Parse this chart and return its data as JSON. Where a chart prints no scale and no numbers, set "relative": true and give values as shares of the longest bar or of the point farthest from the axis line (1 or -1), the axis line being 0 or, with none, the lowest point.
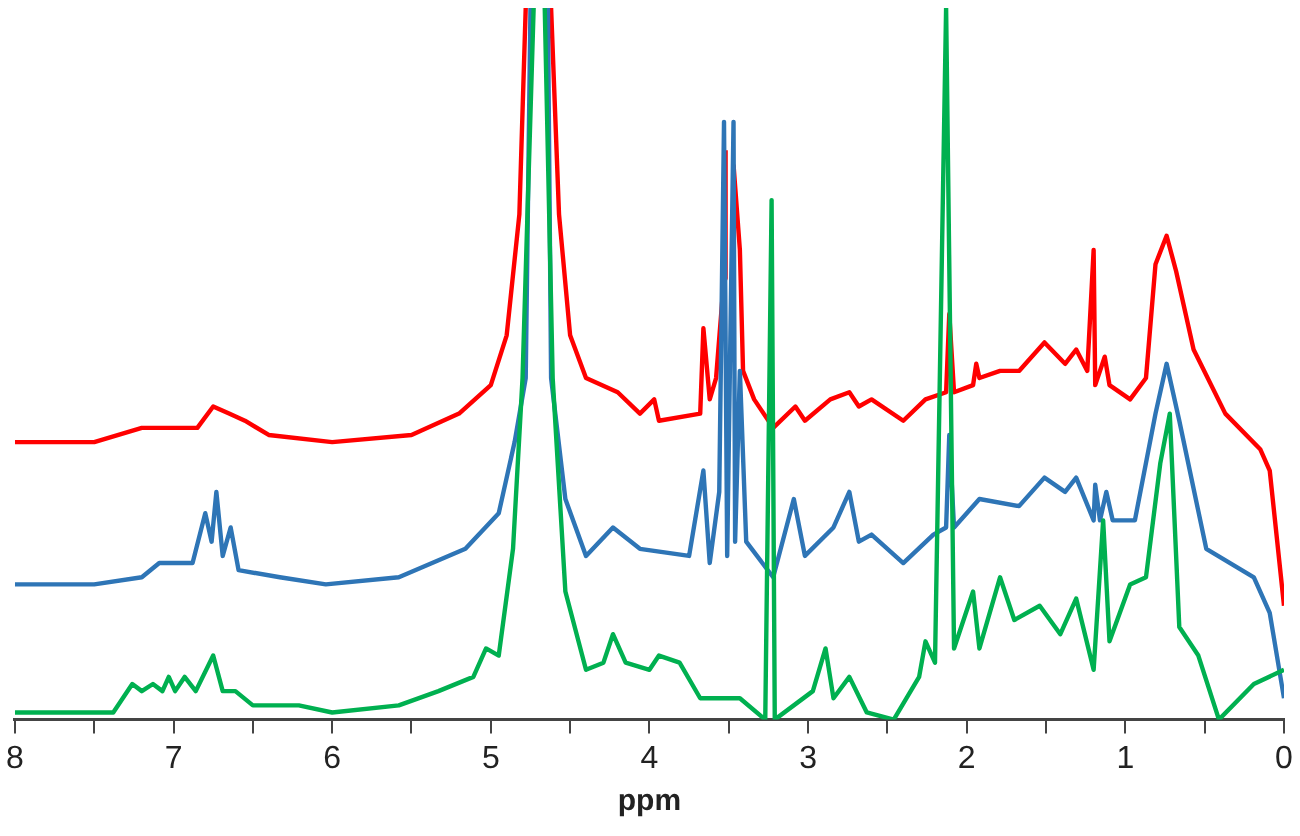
{
  "chart_data": {
    "type": "line",
    "xlabel": "ppm",
    "relative": true,
    "grid": false,
    "legend": false,
    "marker": "none",
    "line_style": "solid",
    "xlim": [
      8,
      0
    ],
    "xticks": [
      8,
      {
        "value": 7.5,
        "label": null
      },
      7,
      {
        "value": 6.5,
        "label": null
      },
      6,
      {
        "value": 5.5,
        "label": null
      },
      5,
      {
        "value": 4.5,
        "label": null
      },
      4,
      {
        "value": 3.5,
        "label": null
      },
      3,
      {
        "value": 2.5,
        "label": null
      },
      2,
      {
        "value": 1.5,
        "label": null
      },
      1,
      {
        "value": 0.5,
        "label": null
      },
      0
    ],
    "series": [
      {
        "color": "#ff0000",
        "x": [
          8,
          7.5,
          7.2,
          7.0,
          6.85,
          6.75,
          6.65,
          6.55,
          6.4,
          6.0,
          5.5,
          5.2,
          5.0,
          4.9,
          4.82,
          4.78,
          4.7,
          4.62,
          4.57,
          4.5,
          4.4,
          4.2,
          4.06,
          3.97,
          3.94,
          3.68,
          3.66,
          3.62,
          3.58,
          3.53,
          3.52,
          3.5,
          3.47,
          3.43,
          3.41,
          3.34,
          3.22,
          3.08,
          3.02,
          2.86,
          2.74,
          2.68,
          2.6,
          2.4,
          2.26,
          2.13,
          2.11,
          2.08,
          1.96,
          1.94,
          1.92,
          1.79,
          1.67,
          1.51,
          1.38,
          1.31,
          1.24,
          1.2,
          1.19,
          1.13,
          1.1,
          0.97,
          0.87,
          0.81,
          0.74,
          0.68,
          0.57,
          0.37,
          0.15,
          0.09,
          0
        ],
        "values": [
          0.39,
          0.39,
          0.41,
          0.41,
          0.41,
          0.44,
          0.43,
          0.42,
          0.4,
          0.39,
          0.4,
          0.43,
          0.47,
          0.54,
          0.71,
          1,
          null,
          1,
          0.71,
          0.54,
          0.48,
          0.46,
          0.43,
          0.45,
          0.42,
          0.43,
          0.55,
          0.45,
          0.48,
          0.62,
          0.8,
          null,
          0.78,
          0.66,
          0.49,
          0.45,
          0.41,
          0.44,
          0.42,
          0.45,
          0.46,
          0.44,
          0.45,
          0.42,
          0.45,
          0.46,
          0.57,
          0.46,
          0.47,
          0.5,
          0.48,
          0.49,
          0.49,
          0.53,
          0.5,
          0.52,
          0.49,
          0.66,
          0.47,
          0.51,
          0.47,
          0.45,
          0.48,
          0.64,
          0.68,
          0.63,
          0.52,
          0.43,
          0.38,
          0.35,
          0.16
        ]
      },
      {
        "color": "#2e75b6",
        "x": [
          8,
          7.5,
          7.2,
          7.09,
          6.88,
          6.8,
          6.76,
          6.73,
          6.69,
          6.64,
          6.59,
          6.33,
          6.04,
          5.58,
          5.16,
          4.95,
          4.85,
          4.78,
          4.75,
          4.7,
          4.64,
          4.62,
          4.53,
          4.4,
          4.23,
          4.06,
          3.75,
          3.66,
          3.62,
          3.56,
          3.53,
          3.51,
          3.47,
          3.46,
          3.43,
          3.39,
          3.22,
          3.09,
          3.02,
          2.84,
          2.74,
          2.68,
          2.6,
          2.4,
          2.21,
          2.13,
          2.11,
          2.08,
          1.92,
          1.67,
          1.51,
          1.38,
          1.31,
          1.2,
          1.19,
          1.16,
          1.12,
          1.08,
          0.94,
          0.81,
          0.74,
          0.66,
          0.49,
          0.19,
          0.09,
          0
        ],
        "values": [
          0.19,
          0.19,
          0.2,
          0.22,
          0.22,
          0.29,
          0.25,
          0.32,
          0.23,
          0.27,
          0.21,
          0.2,
          0.19,
          0.2,
          0.24,
          0.29,
          0.39,
          0.48,
          1,
          null,
          1,
          0.48,
          0.31,
          0.23,
          0.27,
          0.24,
          0.23,
          0.35,
          0.22,
          0.32,
          0.84,
          0.23,
          0.84,
          0.25,
          0.49,
          0.25,
          0.2,
          0.31,
          0.23,
          0.27,
          0.32,
          0.25,
          0.26,
          0.22,
          0.26,
          0.27,
          0.4,
          0.27,
          0.31,
          0.3,
          0.34,
          0.32,
          0.34,
          0.28,
          0.33,
          0.28,
          0.32,
          0.28,
          0.28,
          0.43,
          0.5,
          0.42,
          0.24,
          0.2,
          0.15,
          0.03
        ]
      },
      {
        "color": "#00b050",
        "x": [
          8,
          7.85,
          7.38,
          7.26,
          7.2,
          7.13,
          7.07,
          7.03,
          6.99,
          6.93,
          6.86,
          6.75,
          6.69,
          6.61,
          6.5,
          6.21,
          6.0,
          5.58,
          5.33,
          5.11,
          5.03,
          4.95,
          4.86,
          4.8,
          4.73,
          4.7,
          4.66,
          4.61,
          4.53,
          4.4,
          4.29,
          4.23,
          4.15,
          4.0,
          3.94,
          3.81,
          3.68,
          3.43,
          3.27,
          3.23,
          3.21,
          2.97,
          2.89,
          2.84,
          2.74,
          2.63,
          2.46,
          2.3,
          2.26,
          2.2,
          2.13,
          2.08,
          1.96,
          1.92,
          1.79,
          1.7,
          1.54,
          1.41,
          1.31,
          1.2,
          1.14,
          1.1,
          0.97,
          0.87,
          0.78,
          0.72,
          0.66,
          0.54,
          0.41,
          0.19,
          0
        ],
        "values": [
          0.01,
          0.01,
          0.01,
          0.05,
          0.04,
          0.05,
          0.04,
          0.06,
          0.04,
          0.06,
          0.04,
          0.09,
          0.04,
          0.04,
          0.02,
          0.02,
          0.01,
          0.02,
          0.04,
          0.06,
          0.1,
          0.09,
          0.24,
          0.48,
          1,
          null,
          1,
          0.48,
          0.18,
          0.07,
          0.08,
          0.12,
          0.08,
          0.07,
          0.09,
          0.08,
          0.03,
          0.03,
          0.0,
          0.73,
          0.0,
          0.04,
          0.1,
          0.03,
          0.06,
          0.01,
          0.0,
          0.06,
          0.11,
          0.08,
          1,
          0.1,
          0.18,
          0.1,
          0.2,
          0.14,
          0.16,
          0.12,
          0.17,
          0.07,
          0.28,
          0.11,
          0.19,
          0.2,
          0.36,
          0.43,
          0.13,
          0.09,
          0.0,
          0.05,
          0.07
        ]
      }
    ]
  }
}
